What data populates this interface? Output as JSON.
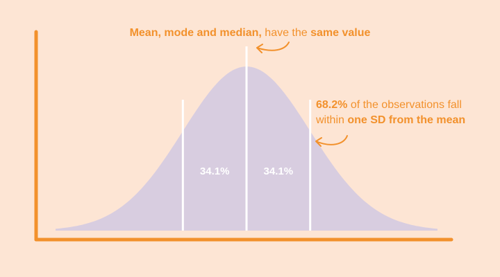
{
  "colors": {
    "background": "#fde5d4",
    "axis": "#f2912c",
    "curve_fill": "#d8cde0",
    "divider_lines": "#ffffff",
    "accent_text": "#f2912c"
  },
  "annotations": {
    "center_tendency": {
      "bold_1": "Mean, mode and median,",
      "normal_1": " have the ",
      "bold_2": "same value"
    },
    "one_sd": {
      "bold_1": "68.2%",
      "normal_1": " of the observations fall",
      "normal_2": "within ",
      "bold_2": "one SD from the mean"
    }
  },
  "chart_data": {
    "type": "area",
    "distribution": "normal",
    "mean": 0,
    "sd": 1,
    "xlim": [
      -3,
      3
    ],
    "divider_x": [
      -1,
      0,
      1
    ],
    "region_labels": [
      {
        "x_from": -1,
        "x_to": 0,
        "label": "34.1%"
      },
      {
        "x_from": 0,
        "x_to": 1,
        "label": "34.1%"
      }
    ],
    "grid": false,
    "tick_labels": false
  }
}
